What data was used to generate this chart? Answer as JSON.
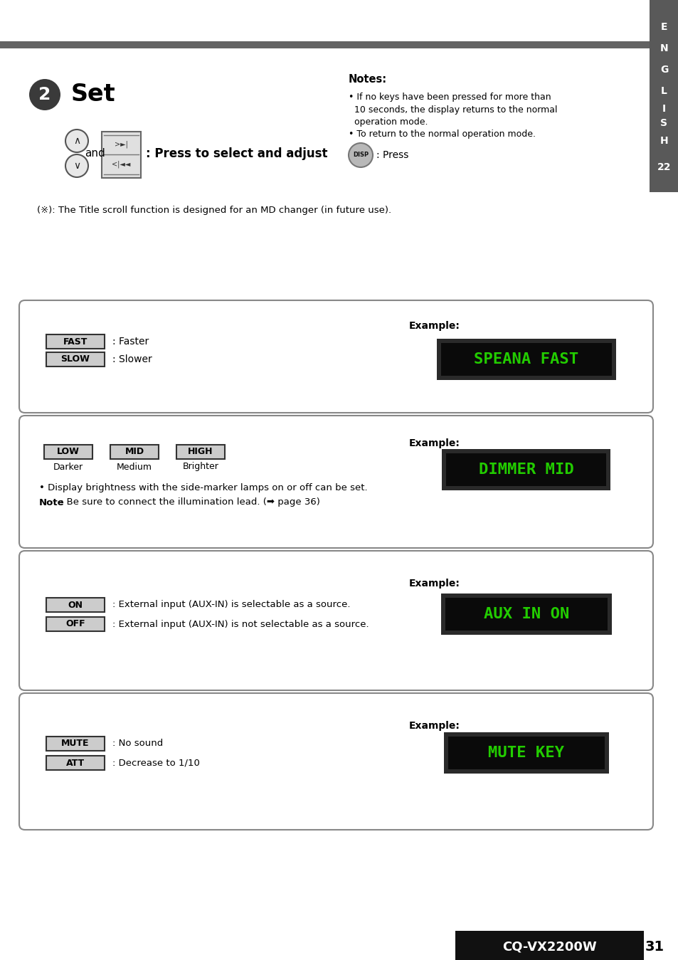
{
  "bg_color": "#ffffff",
  "sidebar_color": "#595959",
  "sidebar_letters": [
    "E",
    "N",
    "G",
    "L",
    "I",
    "S",
    "H"
  ],
  "sidebar_num": "22",
  "page_number": "31",
  "header_bar_color": "#636363",
  "scroll_note": "(※): The Title scroll function is designed for an MD changer (in future use).",
  "footer_bg": "#111111",
  "footer_text": "CQ-VX2200W",
  "controls_text": ": Press to select and adjust",
  "box1_fast_desc": ": Faster",
  "box1_slow_desc": ": Slower",
  "box1_example": "SPEANA FAST",
  "box2_low_sub": "Darker",
  "box2_mid_sub": "Medium",
  "box2_high_sub": "Brighter",
  "box2_example": "DIMMER MID",
  "box2_bullet": "Display brightness with the side-marker lamps on or off can be set.",
  "box2_note_bold": "Note",
  "box2_note_rest": ": Be sure to connect the illumination lead. (➡ page 36)",
  "box3_on_desc": ": External input (AUX-IN) is selectable as a source.",
  "box3_off_desc": ": External input (AUX-IN) is not selectable as a source.",
  "box3_example": "AUX IN ON",
  "box4_mute_desc": ": No sound",
  "box4_att_desc": ": Decrease to 1/10",
  "box4_example": "MUTE KEY",
  "note1_line1": "• If no keys have been pressed for more than",
  "note1_line2": "  10 seconds, the display returns to the normal",
  "note1_line3": "  operation mode.",
  "note2": "• To return to the normal operation mode.",
  "lcd_bg": "#0a0a0a",
  "lcd_frame": "#3a3a3a",
  "lcd_text_color": "#22cc00",
  "btn_fill": "#cccccc",
  "btn_border": "#333333"
}
